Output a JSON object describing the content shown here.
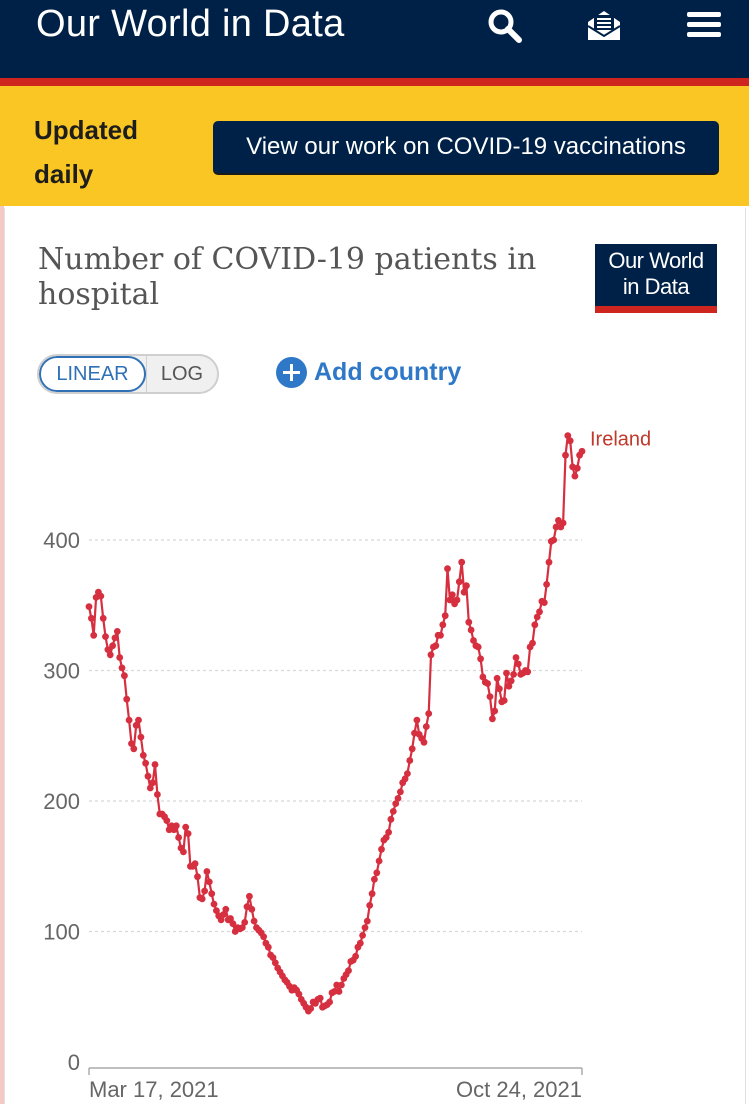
{
  "header": {
    "brand": "Our World in Data",
    "icons": [
      "search-icon",
      "newsletter-icon",
      "menu-icon"
    ]
  },
  "banner": {
    "text": "Updated daily",
    "button_label": "View our work on COVID-19 vaccinations"
  },
  "logo": {
    "line1": "Our World",
    "line2": "in Data"
  },
  "controls": {
    "linear_label": "LINEAR",
    "log_label": "LOG",
    "add_country_label": "Add country"
  },
  "colors": {
    "navy": "#002147",
    "red": "#ce261e",
    "yellow": "#f9c623",
    "series": "#d62f3f",
    "link_blue": "#2e78c7"
  },
  "chart_data": {
    "type": "line",
    "title": "Number of COVID-19 patients in hospital",
    "x_start_label": "Mar 17, 2021",
    "x_end_label": "Oct 24, 2021",
    "ylim": [
      0,
      480
    ],
    "y_ticks": [
      0,
      100,
      200,
      300,
      400
    ],
    "grid": true,
    "series": [
      {
        "name": "Ireland",
        "values": [
          349,
          340,
          327,
          356,
          360,
          357,
          340,
          326,
          316,
          312,
          319,
          325,
          330,
          310,
          302,
          296,
          278,
          262,
          244,
          240,
          258,
          262,
          249,
          235,
          229,
          219,
          210,
          214,
          228,
          205,
          190,
          190,
          188,
          185,
          178,
          181,
          178,
          181,
          172,
          164,
          161,
          180,
          175,
          150,
          150,
          152,
          142,
          126,
          125,
          131,
          146,
          138,
          129,
          121,
          116,
          112,
          109,
          113,
          117,
          109,
          110,
          106,
          100,
          103,
          102,
          103,
          107,
          119,
          127,
          117,
          108,
          103,
          101,
          99,
          96,
          91,
          88,
          82,
          80,
          76,
          72,
          69,
          66,
          63,
          61,
          58,
          55,
          57,
          55,
          52,
          48,
          45,
          42,
          39,
          41,
          46,
          45,
          48,
          49,
          42,
          43,
          44,
          46,
          53,
          54,
          59,
          54,
          59,
          64,
          67,
          70,
          77,
          78,
          81,
          88,
          91,
          97,
          103,
          108,
          120,
          129,
          140,
          145,
          154,
          163,
          170,
          172,
          176,
          186,
          192,
          198,
          202,
          207,
          214,
          217,
          221,
          231,
          240,
          252,
          262,
          251,
          248,
          245,
          257,
          267,
          312,
          318,
          319,
          327,
          327,
          335,
          342,
          378,
          354,
          358,
          351,
          354,
          368,
          383,
          360,
          365,
          337,
          331,
          323,
          319,
          318,
          309,
          295,
          291,
          290,
          280,
          263,
          269,
          294,
          286,
          276,
          277,
          298,
          288,
          292,
          297,
          310,
          305,
          297,
          298,
          300,
          299,
          318,
          321,
          335,
          341,
          345,
          353,
          352,
          366,
          383,
          399,
          400,
          410,
          415,
          410,
          413,
          465,
          480,
          476,
          456,
          449,
          455,
          465,
          468
        ]
      }
    ]
  }
}
